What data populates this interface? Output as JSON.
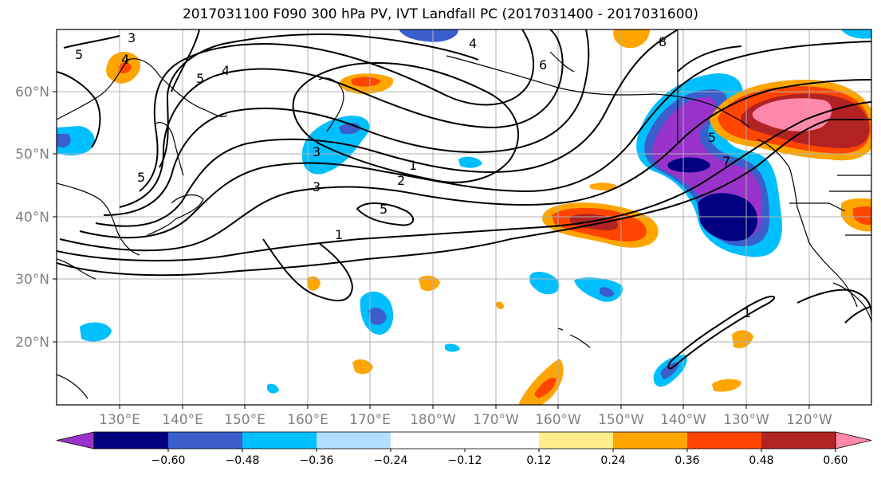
{
  "title": "2017031100 F090 300 hPa PV, IVT Landfall PC (2017031400 - 2017031600)",
  "lon_ticks": [
    "130°E",
    "140°E",
    "150°E",
    "160°E",
    "170°E",
    "180°W",
    "170°W",
    "160°W",
    "150°W",
    "140°W",
    "130°W",
    "120°W"
  ],
  "lat_ticks": [
    "60°N",
    "50°N",
    "40°N",
    "30°N",
    "20°N"
  ],
  "colorbar": {
    "colors": [
      "#9933cc",
      "#000080",
      "#3a5fcd",
      "#00bfff",
      "#b2dfff",
      "#ffffff",
      "#ffffff",
      "#ffec8b",
      "#ffa500",
      "#ff4500",
      "#b22222",
      "#ff88aa"
    ],
    "labels": [
      "−0.60",
      "−0.48",
      "−0.36",
      "−0.24",
      "−0.12",
      "0.12",
      "0.24",
      "0.36",
      "0.48",
      "0.60"
    ]
  },
  "contour_labels": [
    "3",
    "5",
    "4",
    "5",
    "4",
    "8",
    "6",
    "1",
    "2",
    "3",
    "5",
    "5",
    "1",
    "5",
    "1",
    "7",
    "3",
    "4"
  ]
}
